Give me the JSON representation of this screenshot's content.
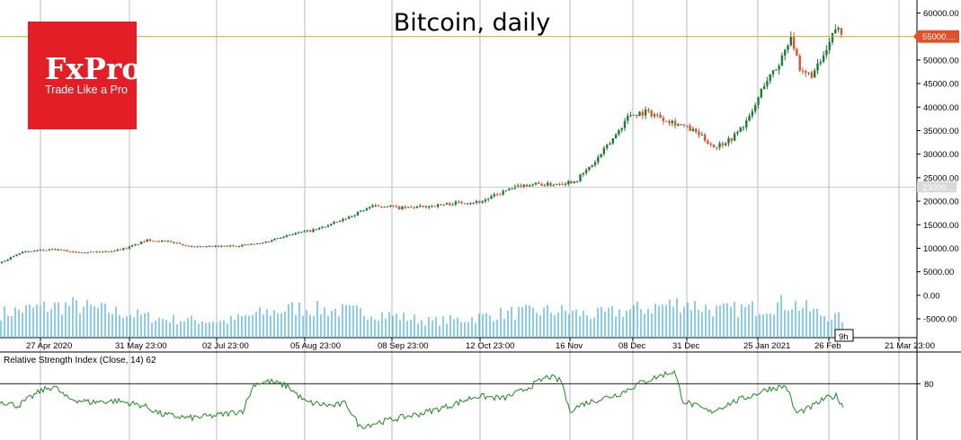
{
  "brand": {
    "name": "FxPro",
    "tagline": "Trade Like a Pro",
    "color": "#e41e26"
  },
  "chart_data": {
    "type": "candlestick",
    "title": "Bitcoin, daily",
    "colors": {
      "up": "#1e7b34",
      "down": "#e0502a",
      "volume": "#5bb8d9",
      "rsi": "#1a8a1a",
      "price_line": "#d4a54a",
      "grid": "#000000"
    },
    "price_axis": {
      "ylim": [
        -9000,
        62000
      ],
      "ticks": [
        60000,
        55000,
        50000,
        45000,
        40000,
        35000,
        30000,
        25000,
        20000,
        15000,
        10000,
        5000,
        0,
        -5000
      ],
      "tick_labels": [
        "60000.00",
        "55000.00",
        "50000.00",
        "45000.00",
        "40000.00",
        "35000.00",
        "30000.00",
        "25000.00",
        "20000.00",
        "15000.00",
        "10000.00",
        "5000.00",
        "0.00",
        "-5000.00"
      ],
      "current_price": 55000,
      "current_price_label": "55000....",
      "crosshair_price": 23000,
      "crosshair_label": "23000...."
    },
    "x_labels": [
      "27 Apr 2020",
      "31 May 23:00",
      "02 Jul 23:00",
      "05 Aug 23:00",
      "08 Sep 23:00",
      "12 Oct 23:00",
      "16 Nov",
      "08 Dec",
      "31 Dec",
      "25 Jan 2021",
      "26 Feb",
      "21 Mar 23:00"
    ],
    "timeframe_badge": "9h",
    "close_anchors": [
      [
        0,
        6800
      ],
      [
        20,
        9000
      ],
      [
        40,
        9500
      ],
      [
        60,
        9700
      ],
      [
        80,
        9300
      ],
      [
        100,
        9200
      ],
      [
        120,
        9300
      ],
      [
        140,
        10000
      ],
      [
        165,
        11800
      ],
      [
        195,
        11200
      ],
      [
        215,
        10200
      ],
      [
        260,
        10500
      ],
      [
        290,
        11000
      ],
      [
        320,
        12900
      ],
      [
        350,
        13900
      ],
      [
        380,
        15900
      ],
      [
        410,
        18700
      ],
      [
        430,
        19100
      ],
      [
        445,
        18500
      ],
      [
        470,
        18800
      ],
      [
        490,
        19200
      ],
      [
        510,
        19700
      ],
      [
        535,
        19900
      ],
      [
        560,
        22000
      ],
      [
        580,
        23300
      ],
      [
        595,
        23700
      ],
      [
        610,
        23500
      ],
      [
        625,
        23900
      ],
      [
        640,
        24300
      ],
      [
        660,
        27900
      ],
      [
        680,
        32800
      ],
      [
        700,
        38400
      ],
      [
        720,
        39000
      ],
      [
        740,
        37500
      ],
      [
        760,
        36000
      ],
      [
        775,
        34500
      ],
      [
        795,
        31500
      ],
      [
        815,
        33500
      ],
      [
        835,
        38000
      ],
      [
        850,
        45000
      ],
      [
        865,
        48500
      ],
      [
        880,
        55500
      ],
      [
        890,
        47000
      ],
      [
        905,
        47000
      ],
      [
        920,
        52000
      ],
      [
        930,
        57000
      ],
      [
        938,
        55000
      ]
    ],
    "volume_anchors": [
      [
        0,
        0.45
      ],
      [
        40,
        0.55
      ],
      [
        80,
        0.6
      ],
      [
        120,
        0.5
      ],
      [
        180,
        0.35
      ],
      [
        250,
        0.3
      ],
      [
        290,
        0.45
      ],
      [
        330,
        0.55
      ],
      [
        380,
        0.5
      ],
      [
        420,
        0.45
      ],
      [
        480,
        0.3
      ],
      [
        520,
        0.35
      ],
      [
        560,
        0.45
      ],
      [
        620,
        0.5
      ],
      [
        660,
        0.42
      ],
      [
        720,
        0.55
      ],
      [
        760,
        0.65
      ],
      [
        800,
        0.5
      ],
      [
        840,
        0.55
      ],
      [
        880,
        0.65
      ],
      [
        910,
        0.45
      ],
      [
        938,
        0.35
      ]
    ],
    "rsi": {
      "label": "Relative Strength Index (Close, 14) 62",
      "level": 80,
      "level_label": "80",
      "current": 62,
      "anchors": [
        [
          0,
          66
        ],
        [
          20,
          62
        ],
        [
          45,
          74
        ],
        [
          60,
          78
        ],
        [
          75,
          68
        ],
        [
          100,
          65
        ],
        [
          130,
          66
        ],
        [
          160,
          62
        ],
        [
          180,
          55
        ],
        [
          210,
          52
        ],
        [
          240,
          54
        ],
        [
          270,
          58
        ],
        [
          283,
          80
        ],
        [
          300,
          82
        ],
        [
          320,
          78
        ],
        [
          340,
          65
        ],
        [
          370,
          62
        ],
        [
          385,
          64
        ],
        [
          400,
          45
        ],
        [
          430,
          50
        ],
        [
          470,
          56
        ],
        [
          500,
          62
        ],
        [
          530,
          70
        ],
        [
          560,
          68
        ],
        [
          580,
          74
        ],
        [
          610,
          86
        ],
        [
          625,
          82
        ],
        [
          633,
          58
        ],
        [
          650,
          64
        ],
        [
          690,
          72
        ],
        [
          710,
          80
        ],
        [
          740,
          88
        ],
        [
          750,
          90
        ],
        [
          760,
          66
        ],
        [
          790,
          57
        ],
        [
          815,
          65
        ],
        [
          835,
          70
        ],
        [
          855,
          76
        ],
        [
          875,
          78
        ],
        [
          885,
          56
        ],
        [
          900,
          60
        ],
        [
          918,
          68
        ],
        [
          930,
          70
        ],
        [
          938,
          62
        ]
      ]
    }
  }
}
